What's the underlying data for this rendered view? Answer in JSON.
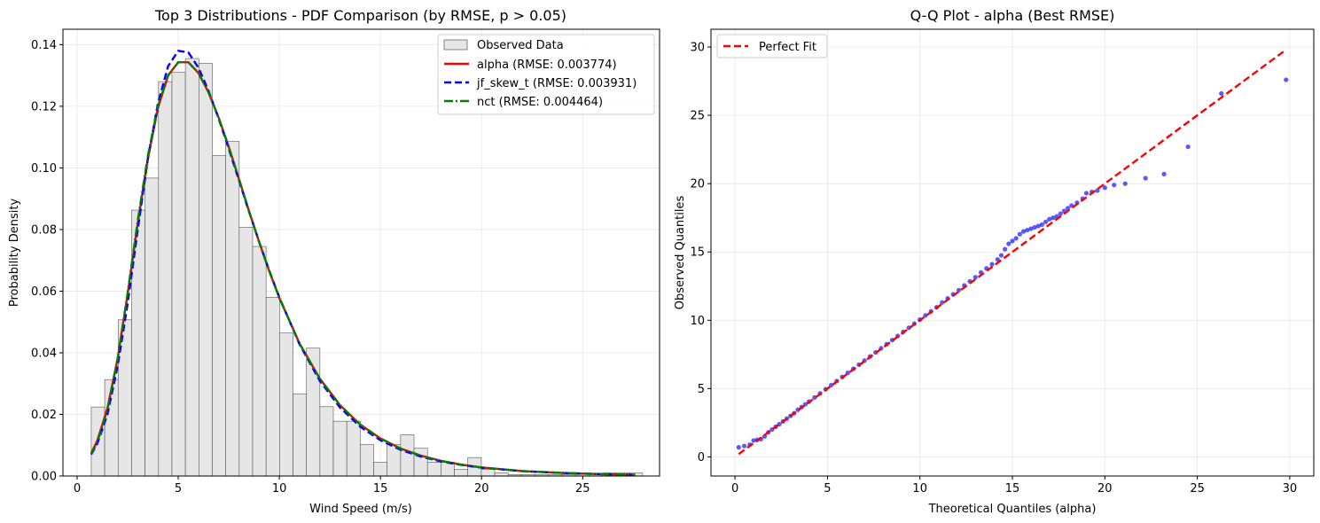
{
  "chart_data": [
    {
      "type": "histogram",
      "title": "Top 3 Distributions - PDF Comparison (by RMSE, p > 0.05)",
      "xlabel": "Wind Speed (m/s)",
      "ylabel": "Probability Density",
      "xlim": [
        -0.7,
        28.8
      ],
      "ylim": [
        0,
        0.145
      ],
      "xticks": [
        0,
        5,
        10,
        15,
        20,
        25
      ],
      "yticks": [
        0.0,
        0.02,
        0.04,
        0.06,
        0.08,
        0.1,
        0.12,
        0.14
      ],
      "grid": true,
      "legend_position": "top-right",
      "bins": {
        "start": 0.7,
        "width": 0.665,
        "values": [
          0.0224,
          0.0313,
          0.0507,
          0.0863,
          0.0967,
          0.128,
          0.131,
          0.1355,
          0.1339,
          0.104,
          0.1086,
          0.0807,
          0.0745,
          0.058,
          0.0464,
          0.0267,
          0.0415,
          0.0225,
          0.0178,
          0.0178,
          0.0102,
          0.0045,
          0.0102,
          0.0134,
          0.009,
          0.0045,
          0.0045,
          0.0022,
          0.006,
          0.0022,
          0.001,
          0.0005,
          0.0005,
          0.0005,
          0.0005,
          0.0005,
          0.0005,
          0.0005,
          0.001,
          0.001,
          0.001
        ]
      },
      "hist_label": "Observed Data",
      "hist_color": "#e6e6e6",
      "series": [
        {
          "name": "alpha (RMSE: 0.003774)",
          "color": "#ff0000",
          "style": "solid",
          "x": [
            0.7,
            1.0,
            1.5,
            2.0,
            2.5,
            3.0,
            3.5,
            4.0,
            4.5,
            5.0,
            5.5,
            6.0,
            6.5,
            7.0,
            7.5,
            8.0,
            8.5,
            9.0,
            9.5,
            10.0,
            11.0,
            12.0,
            13.0,
            14.0,
            15.0,
            16.0,
            17.0,
            18.0,
            19.0,
            20.0,
            22.0,
            24.0,
            26.0,
            27.6
          ],
          "y": [
            0.0075,
            0.0115,
            0.022,
            0.038,
            0.059,
            0.082,
            0.103,
            0.1195,
            0.13,
            0.1343,
            0.1343,
            0.1308,
            0.1245,
            0.1163,
            0.1068,
            0.0965,
            0.086,
            0.076,
            0.0665,
            0.0578,
            0.043,
            0.0316,
            0.023,
            0.0167,
            0.0122,
            0.0089,
            0.0066,
            0.0049,
            0.0037,
            0.0028,
            0.0016,
            0.001,
            0.0006,
            0.0004
          ]
        },
        {
          "name": "jf_skew_t (RMSE: 0.003931)",
          "color": "#0000ff",
          "style": "dashed",
          "x": [
            0.7,
            1.0,
            1.5,
            2.0,
            2.5,
            3.0,
            3.5,
            4.0,
            4.5,
            5.0,
            5.5,
            6.0,
            6.5,
            7.0,
            7.5,
            8.0,
            8.5,
            9.0,
            9.5,
            10.0,
            11.0,
            12.0,
            13.0,
            14.0,
            15.0,
            16.0,
            17.0,
            18.0,
            19.0,
            20.0,
            22.0,
            24.0,
            26.0,
            27.6
          ],
          "y": [
            0.007,
            0.0105,
            0.02,
            0.0355,
            0.056,
            0.08,
            0.103,
            0.121,
            0.133,
            0.138,
            0.1375,
            0.1325,
            0.125,
            0.116,
            0.1062,
            0.096,
            0.0858,
            0.076,
            0.0667,
            0.058,
            0.0427,
            0.0309,
            0.0222,
            0.016,
            0.0116,
            0.0085,
            0.0063,
            0.0047,
            0.0036,
            0.0027,
            0.0016,
            0.001,
            0.0006,
            0.0004
          ]
        },
        {
          "name": "nct (RMSE: 0.004464)",
          "color": "#008000",
          "style": "dashdot",
          "x": [
            0.7,
            1.0,
            1.5,
            2.0,
            2.5,
            3.0,
            3.5,
            4.0,
            4.5,
            5.0,
            5.5,
            6.0,
            6.5,
            7.0,
            7.5,
            8.0,
            8.5,
            9.0,
            9.5,
            10.0,
            11.0,
            12.0,
            13.0,
            14.0,
            15.0,
            16.0,
            17.0,
            18.0,
            19.0,
            20.0,
            22.0,
            24.0,
            26.0,
            27.6
          ],
          "y": [
            0.0072,
            0.011,
            0.0215,
            0.0378,
            0.0595,
            0.083,
            0.104,
            0.12,
            0.13,
            0.1343,
            0.1343,
            0.1308,
            0.1245,
            0.1163,
            0.1068,
            0.0965,
            0.086,
            0.076,
            0.0665,
            0.0578,
            0.043,
            0.0316,
            0.023,
            0.0167,
            0.0122,
            0.0089,
            0.0066,
            0.0049,
            0.0037,
            0.0028,
            0.0016,
            0.001,
            0.0006,
            0.0004
          ]
        }
      ]
    },
    {
      "type": "scatter",
      "title": "Q-Q Plot - alpha (Best RMSE)",
      "xlabel": "Theoretical Quantiles (alpha)",
      "ylabel": "Observed Quantiles",
      "xlim": [
        -1.3,
        31.3
      ],
      "ylim": [
        -1.4,
        31.3
      ],
      "xticks": [
        0,
        5,
        10,
        15,
        20,
        25,
        30
      ],
      "yticks": [
        0,
        5,
        10,
        15,
        20,
        25,
        30
      ],
      "grid": true,
      "legend_position": "top-left",
      "reference_line": {
        "name": "Perfect Fit",
        "color": "#ff0000",
        "style": "dashed",
        "x": [
          0.2,
          29.8
        ],
        "y": [
          0.2,
          29.8
        ]
      },
      "points_color": "#0000ff",
      "points": {
        "x": [
          0.2,
          0.5,
          0.8,
          1.0,
          1.2,
          1.4,
          1.6,
          1.8,
          2.0,
          2.2,
          2.4,
          2.6,
          2.8,
          3.0,
          3.2,
          3.4,
          3.6,
          3.8,
          4.0,
          4.3,
          4.6,
          4.9,
          5.2,
          5.5,
          5.8,
          6.1,
          6.4,
          6.7,
          7.0,
          7.3,
          7.6,
          7.9,
          8.2,
          8.5,
          8.8,
          9.1,
          9.4,
          9.7,
          10.0,
          10.3,
          10.6,
          10.9,
          11.2,
          11.5,
          11.8,
          12.1,
          12.4,
          12.7,
          13.0,
          13.3,
          13.6,
          13.9,
          14.2,
          14.4,
          14.6,
          14.8,
          15.0,
          15.2,
          15.4,
          15.6,
          15.8,
          16.0,
          16.2,
          16.4,
          16.6,
          16.8,
          17.0,
          17.2,
          17.4,
          17.6,
          17.8,
          18.0,
          18.2,
          18.5,
          18.8,
          19.0,
          19.3,
          19.6,
          20.0,
          20.5,
          21.1,
          22.2,
          23.2,
          24.5,
          26.3,
          29.8
        ],
        "y": [
          0.7,
          0.8,
          0.9,
          1.2,
          1.25,
          1.3,
          1.5,
          1.8,
          2.0,
          2.2,
          2.4,
          2.6,
          2.8,
          3.0,
          3.2,
          3.45,
          3.65,
          3.85,
          4.05,
          4.35,
          4.65,
          4.95,
          5.25,
          5.55,
          5.85,
          6.15,
          6.45,
          6.75,
          7.05,
          7.35,
          7.65,
          7.95,
          8.25,
          8.55,
          8.85,
          9.15,
          9.45,
          9.75,
          10.05,
          10.35,
          10.65,
          10.95,
          11.3,
          11.6,
          11.9,
          12.2,
          12.55,
          12.85,
          13.15,
          13.5,
          13.8,
          14.1,
          14.45,
          14.75,
          15.2,
          15.6,
          15.8,
          16.0,
          16.3,
          16.5,
          16.6,
          16.7,
          16.8,
          16.9,
          17.0,
          17.2,
          17.4,
          17.5,
          17.6,
          17.8,
          18.0,
          18.2,
          18.4,
          18.6,
          18.9,
          19.3,
          19.4,
          19.5,
          19.7,
          19.9,
          20.0,
          20.4,
          20.7,
          22.7,
          26.6,
          27.6
        ]
      }
    }
  ]
}
